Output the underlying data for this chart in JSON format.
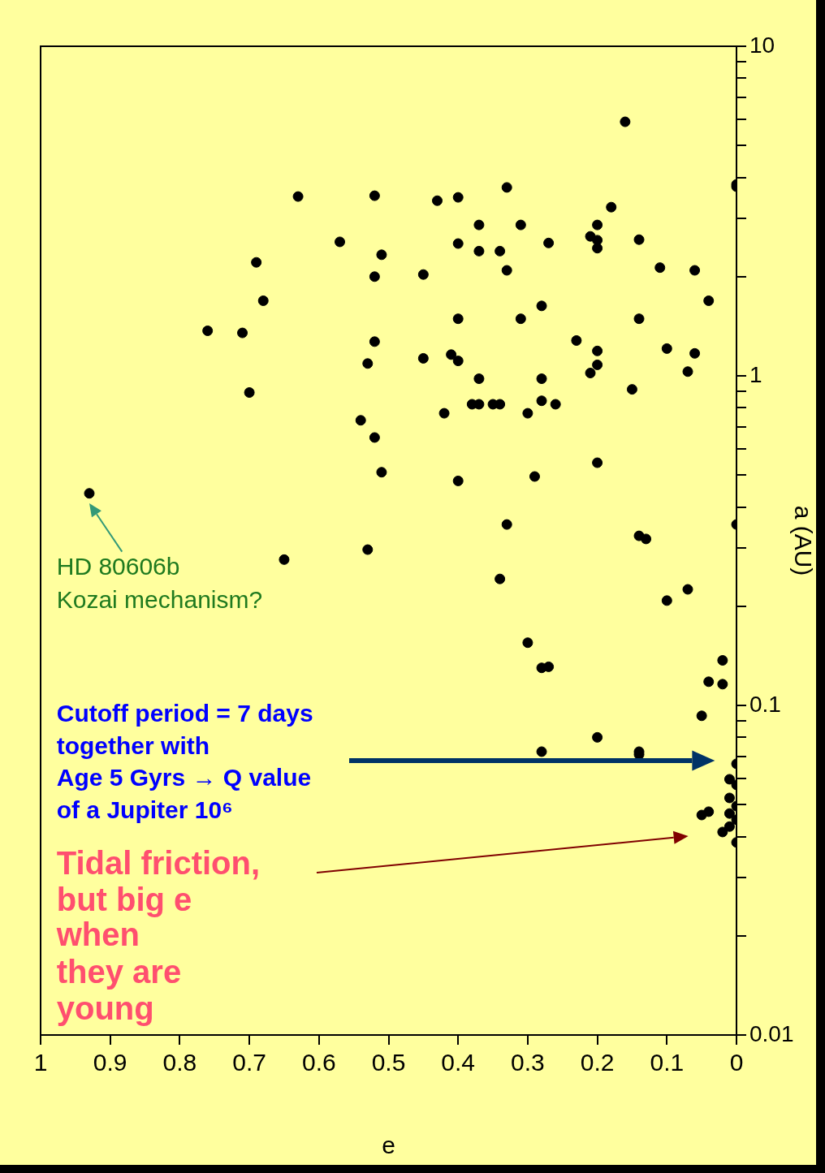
{
  "chart_data": {
    "type": "scatter",
    "xlabel": "e",
    "ylabel": "a (AU)",
    "color": "#000000",
    "marker": "circle",
    "log": "y",
    "x": [
      0.93,
      0.76,
      0.71,
      0.7,
      0.69,
      0.68,
      0.65,
      0.63,
      0.57,
      0.54,
      0.53,
      0.53,
      0.52,
      0.52,
      0.52,
      0.52,
      0.51,
      0.51,
      0.45,
      0.45,
      0.43,
      0.42,
      0.41,
      0.4,
      0.4,
      0.4,
      0.4,
      0.4,
      0.38,
      0.37,
      0.37,
      0.37,
      0.37,
      0.35,
      0.34,
      0.34,
      0.34,
      0.33,
      0.33,
      0.33,
      0.31,
      0.31,
      0.3,
      0.3,
      0.29,
      0.28,
      0.28,
      0.28,
      0.28,
      0.27,
      0.28,
      0.27,
      0.26,
      0.23,
      0.21,
      0.21,
      0.2,
      0.2,
      0.2,
      0.2,
      0.2,
      0.2,
      0.2,
      0.18,
      0.16,
      0.15,
      0.14,
      0.14,
      0.14,
      0.13,
      0.14,
      0.14,
      0.11,
      0.1,
      0.1,
      0.07,
      0.07,
      0.06,
      0.06,
      0.05,
      0.05,
      0.04,
      0.04,
      0.04,
      0.02,
      0.02,
      0.02,
      0.01,
      0.01,
      0.01,
      0.01,
      0,
      0,
      0,
      0,
      0,
      0,
      0,
      0
    ],
    "values": [
      0.44,
      1.37,
      1.35,
      0.89,
      2.21,
      1.69,
      0.277,
      3.5,
      2.55,
      0.733,
      1.09,
      0.297,
      0.65,
      1.27,
      2.0,
      3.52,
      2.33,
      0.51,
      1.13,
      2.03,
      3.4,
      0.77,
      1.16,
      3.48,
      2.52,
      1.49,
      1.11,
      0.48,
      0.82,
      0.82,
      0.98,
      2.87,
      2.39,
      0.82,
      0.82,
      2.39,
      0.242,
      3.73,
      2.09,
      0.354,
      2.87,
      1.49,
      0.77,
      0.155,
      0.495,
      1.63,
      0.98,
      0.84,
      0.13,
      0.131,
      0.0724,
      2.53,
      0.82,
      1.28,
      2.65,
      1.02,
      2.87,
      2.58,
      2.44,
      1.19,
      1.08,
      0.545,
      0.08,
      3.25,
      5.9,
      0.91,
      2.59,
      1.49,
      0.327,
      0.32,
      0.0724,
      0.071,
      2.13,
      1.21,
      0.208,
      1.03,
      0.225,
      2.09,
      1.17,
      0.093,
      0.0465,
      1.69,
      0.118,
      0.0476,
      0.137,
      0.116,
      0.0413,
      0.0597,
      0.0524,
      0.047,
      0.0429,
      3.81,
      3.75,
      0.354,
      0.0665,
      0.0574,
      0.0495,
      0.045,
      0.0384
    ],
    "xlim": [
      1,
      0
    ],
    "xticks": [
      0,
      0.1,
      0.2,
      0.3,
      0.4,
      0.5,
      0.6,
      0.7,
      0.8,
      0.9,
      1
    ],
    "ylim": [
      0.01,
      10
    ],
    "yticks": [
      0.01,
      {
        "value": 0.02,
        "label": null
      },
      {
        "value": 0.03,
        "label": null
      },
      {
        "value": 0.04,
        "label": null
      },
      {
        "value": 0.05,
        "label": null
      },
      {
        "value": 0.06,
        "label": null
      },
      {
        "value": 0.07,
        "label": null
      },
      {
        "value": 0.08,
        "label": null
      },
      {
        "value": 0.09,
        "label": null
      },
      0.1,
      {
        "value": 0.2,
        "label": null
      },
      {
        "value": 0.3,
        "label": null
      },
      {
        "value": 0.4,
        "label": null
      },
      {
        "value": 0.5,
        "label": null
      },
      {
        "value": 0.6,
        "label": null
      },
      {
        "value": 0.7,
        "label": null
      },
      {
        "value": 0.8,
        "label": null
      },
      {
        "value": 0.9,
        "label": null
      },
      1,
      {
        "value": 2,
        "label": null
      },
      {
        "value": 3,
        "label": null
      },
      {
        "value": 4,
        "label": null
      },
      {
        "value": 5,
        "label": null
      },
      {
        "value": 6,
        "label": null
      },
      {
        "value": 7,
        "label": null
      },
      {
        "value": 8,
        "label": null
      },
      {
        "value": 9,
        "label": null
      },
      10
    ],
    "annotations": [
      {
        "text": "HD 80606b\nKozai mechanism?",
        "x": 0.93,
        "y": 0.44
      },
      "Cutoff period = 7 days\ntogether with\nAge 5 Gyrs → Q value\nof a Jupiter 10⁶",
      "Tidal friction,\nbut big e\nwhen\nthey are\nyoung"
    ]
  }
}
